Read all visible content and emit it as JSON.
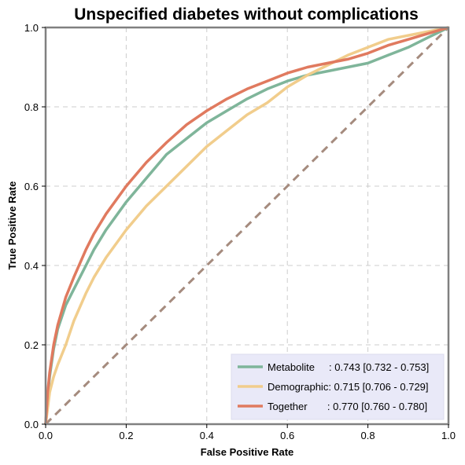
{
  "chart_data": {
    "type": "line",
    "title": "Unspecified diabetes without complications",
    "xlabel": "False Positive Rate",
    "ylabel": "True Positive Rate",
    "xlim": [
      0,
      1
    ],
    "ylim": [
      0,
      1
    ],
    "xticks": [
      "0.0",
      "0.2",
      "0.4",
      "0.6",
      "0.8",
      "1.0"
    ],
    "yticks": [
      "0.0",
      "0.2",
      "0.4",
      "0.6",
      "0.8",
      "1.0"
    ],
    "grid": true,
    "legend_position": "bottom-right",
    "series": [
      {
        "name": "Metabolite",
        "legend_text": "Metabolite     : 0.743 [0.732 - 0.753]",
        "color": "#7fb59a",
        "x": [
          0,
          0.005,
          0.01,
          0.02,
          0.03,
          0.05,
          0.07,
          0.1,
          0.12,
          0.15,
          0.2,
          0.25,
          0.3,
          0.35,
          0.4,
          0.45,
          0.5,
          0.55,
          0.6,
          0.65,
          0.7,
          0.75,
          0.8,
          0.85,
          0.9,
          0.95,
          1.0
        ],
        "y": [
          0,
          0.07,
          0.12,
          0.19,
          0.24,
          0.3,
          0.34,
          0.4,
          0.44,
          0.49,
          0.56,
          0.62,
          0.68,
          0.72,
          0.76,
          0.79,
          0.82,
          0.845,
          0.865,
          0.88,
          0.89,
          0.9,
          0.91,
          0.93,
          0.95,
          0.975,
          1.0
        ]
      },
      {
        "name": "Demographic",
        "legend_text": "Demographic: 0.715 [0.706 - 0.729]",
        "color": "#f1cd8c",
        "x": [
          0,
          0.005,
          0.01,
          0.02,
          0.03,
          0.05,
          0.07,
          0.1,
          0.12,
          0.15,
          0.2,
          0.25,
          0.3,
          0.35,
          0.4,
          0.45,
          0.5,
          0.55,
          0.6,
          0.65,
          0.7,
          0.75,
          0.8,
          0.85,
          0.9,
          0.95,
          1.0
        ],
        "y": [
          0,
          0.04,
          0.08,
          0.12,
          0.15,
          0.2,
          0.26,
          0.33,
          0.37,
          0.42,
          0.49,
          0.55,
          0.6,
          0.65,
          0.7,
          0.74,
          0.78,
          0.81,
          0.85,
          0.88,
          0.905,
          0.93,
          0.95,
          0.97,
          0.98,
          0.99,
          1.0
        ]
      },
      {
        "name": "Together",
        "legend_text": "Together       : 0.770 [0.760 - 0.780]",
        "color": "#e07a5f",
        "x": [
          0,
          0.005,
          0.01,
          0.02,
          0.03,
          0.05,
          0.07,
          0.1,
          0.12,
          0.15,
          0.2,
          0.25,
          0.3,
          0.35,
          0.4,
          0.45,
          0.5,
          0.55,
          0.6,
          0.65,
          0.7,
          0.75,
          0.8,
          0.85,
          0.9,
          0.95,
          1.0
        ],
        "y": [
          0,
          0.08,
          0.13,
          0.2,
          0.25,
          0.32,
          0.37,
          0.44,
          0.48,
          0.53,
          0.6,
          0.66,
          0.71,
          0.755,
          0.79,
          0.82,
          0.845,
          0.865,
          0.885,
          0.9,
          0.91,
          0.92,
          0.935,
          0.955,
          0.97,
          0.985,
          1.0
        ]
      }
    ],
    "reference_line": {
      "x": [
        0,
        1
      ],
      "y": [
        0,
        1
      ],
      "color": "#a58b7e",
      "style": "dashed"
    }
  }
}
